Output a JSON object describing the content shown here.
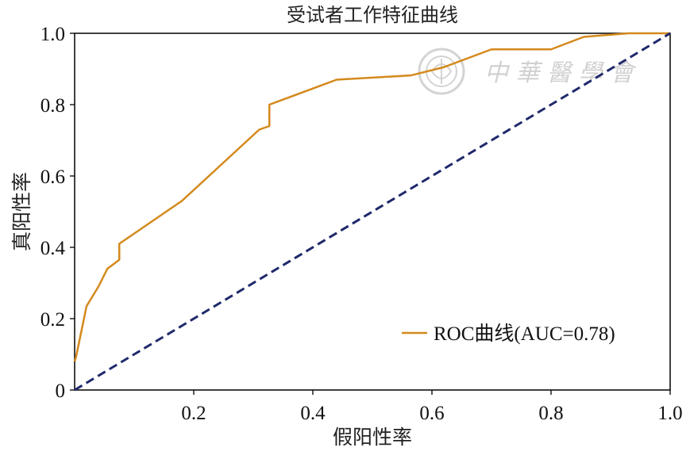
{
  "chart_data": {
    "type": "line",
    "title": "受试者工作特征曲线",
    "xlabel": "假阳性率",
    "ylabel": "真阳性率",
    "xlim": [
      0,
      1
    ],
    "ylim": [
      0,
      1
    ],
    "x_ticks": [
      "0.2",
      "0.4",
      "0.6",
      "0.8",
      "1.0"
    ],
    "x_tick_values": [
      0.2,
      0.4,
      0.6,
      0.8,
      1.0
    ],
    "y_ticks": [
      "0",
      "0.2",
      "0.4",
      "0.6",
      "0.8",
      "1.0"
    ],
    "y_tick_values": [
      0,
      0.2,
      0.4,
      0.6,
      0.8,
      1.0
    ],
    "grid": false,
    "legend_position": "lower-right",
    "series": [
      {
        "name": "ROC曲线(AUC=0.78)",
        "color": "#D4891C",
        "style": "solid",
        "x": [
          0,
          0.002,
          0.02,
          0.04,
          0.055,
          0.075,
          0.075,
          0.18,
          0.31,
          0.327,
          0.327,
          0.44,
          0.565,
          0.62,
          0.7,
          0.73,
          0.8,
          0.855,
          0.93,
          1.0
        ],
        "y": [
          0.08,
          0.09,
          0.235,
          0.29,
          0.34,
          0.365,
          0.41,
          0.53,
          0.73,
          0.74,
          0.8,
          0.87,
          0.882,
          0.905,
          0.955,
          0.955,
          0.955,
          0.99,
          1.0,
          1.0
        ]
      },
      {
        "color": "#1F2A6B",
        "style": "dashed",
        "x": [
          0,
          1
        ],
        "y": [
          0,
          1
        ]
      }
    ]
  },
  "watermark": {
    "text": "中 華 醫 學 會",
    "icon": "emblem-icon"
  }
}
